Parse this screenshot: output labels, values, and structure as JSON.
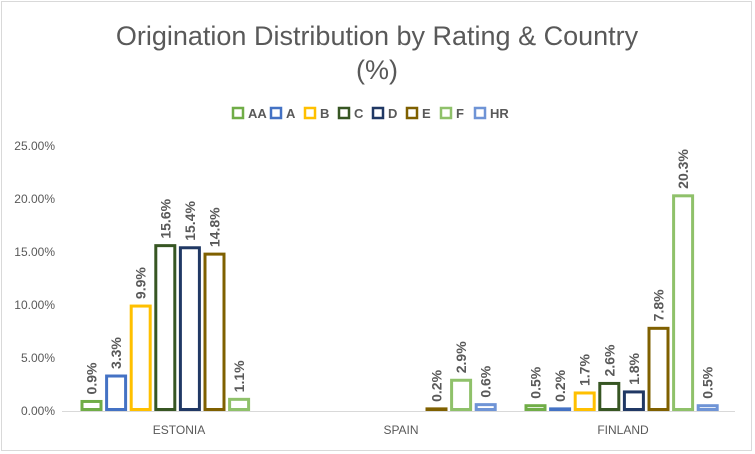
{
  "chart_data": {
    "type": "bar",
    "title": "Origination Distribution by Rating & Country",
    "title_line2": "(%)",
    "xlabel": "",
    "ylabel": "",
    "ylim": [
      0,
      25
    ],
    "yticks": [
      "0.00%",
      "5.00%",
      "10.00%",
      "15.00%",
      "20.00%",
      "25.00%"
    ],
    "ytick_values": [
      0,
      5,
      10,
      15,
      20,
      25
    ],
    "categories": [
      "ESTONIA",
      "SPAIN",
      "FINLAND"
    ],
    "legend_position": "top",
    "grid": false,
    "series": [
      {
        "name": "AA",
        "color": "#70AD47",
        "values": [
          0.9,
          null,
          0.5
        ],
        "labels": [
          "0.9%",
          null,
          "0.5%"
        ]
      },
      {
        "name": "A",
        "color": "#4472C4",
        "values": [
          3.3,
          null,
          0.2
        ],
        "labels": [
          "3.3%",
          null,
          "0.2%"
        ]
      },
      {
        "name": "B",
        "color": "#FFC000",
        "values": [
          9.9,
          null,
          1.7
        ],
        "labels": [
          "9.9%",
          null,
          "1.7%"
        ]
      },
      {
        "name": "C",
        "color": "#375623",
        "values": [
          15.6,
          null,
          2.6
        ],
        "labels": [
          "15.6%",
          null,
          "2.6%"
        ]
      },
      {
        "name": "D",
        "color": "#203864",
        "values": [
          15.4,
          null,
          1.8
        ],
        "labels": [
          "15.4%",
          null,
          "1.8%"
        ]
      },
      {
        "name": "E",
        "color": "#7F6000",
        "values": [
          14.8,
          0.2,
          7.8
        ],
        "labels": [
          "14.8%",
          "0.2%",
          "7.8%"
        ]
      },
      {
        "name": "F",
        "color": "#8FC16A",
        "values": [
          1.1,
          2.9,
          20.3
        ],
        "labels": [
          "1.1%",
          "2.9%",
          "20.3%"
        ]
      },
      {
        "name": "HR",
        "color": "#6F94D6",
        "values": [
          null,
          0.6,
          0.5
        ],
        "labels": [
          null,
          "0.6%",
          "0.5%"
        ]
      }
    ]
  }
}
